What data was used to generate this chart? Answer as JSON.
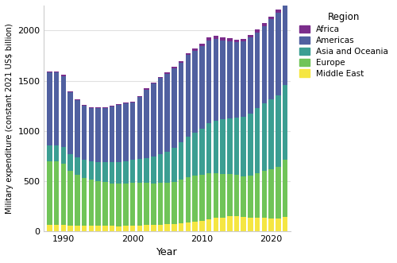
{
  "years": [
    1988,
    1989,
    1990,
    1991,
    1992,
    1993,
    1994,
    1995,
    1996,
    1997,
    1998,
    1999,
    2000,
    2001,
    2002,
    2003,
    2004,
    2005,
    2006,
    2007,
    2008,
    2009,
    2010,
    2011,
    2012,
    2013,
    2014,
    2015,
    2016,
    2017,
    2018,
    2019,
    2020,
    2021,
    2022
  ],
  "africa": [
    9,
    9,
    9,
    8,
    8,
    8,
    8,
    8,
    8,
    9,
    9,
    9,
    10,
    11,
    11,
    12,
    13,
    14,
    15,
    17,
    20,
    22,
    24,
    26,
    27,
    28,
    29,
    28,
    27,
    28,
    29,
    30,
    29,
    30,
    31
  ],
  "americas": [
    730,
    728,
    710,
    615,
    570,
    545,
    535,
    540,
    545,
    555,
    568,
    580,
    575,
    615,
    683,
    730,
    762,
    780,
    790,
    792,
    813,
    815,
    822,
    830,
    818,
    790,
    768,
    752,
    752,
    758,
    759,
    769,
    800,
    820,
    838
  ],
  "asia_oceania": [
    155,
    160,
    162,
    167,
    172,
    177,
    182,
    191,
    200,
    210,
    215,
    220,
    230,
    240,
    252,
    267,
    286,
    310,
    338,
    372,
    404,
    427,
    461,
    499,
    527,
    546,
    562,
    573,
    592,
    620,
    649,
    676,
    697,
    716,
    745
  ],
  "europe": [
    635,
    635,
    618,
    548,
    513,
    482,
    463,
    448,
    435,
    427,
    427,
    425,
    425,
    425,
    420,
    415,
    415,
    415,
    422,
    435,
    455,
    465,
    463,
    455,
    445,
    432,
    420,
    410,
    408,
    418,
    442,
    468,
    490,
    515,
    573
  ],
  "middle_east": [
    60,
    58,
    57,
    53,
    50,
    50,
    50,
    50,
    50,
    49,
    47,
    50,
    52,
    55,
    57,
    58,
    62,
    66,
    70,
    76,
    83,
    90,
    99,
    120,
    130,
    135,
    145,
    148,
    138,
    133,
    133,
    130,
    125,
    125,
    138
  ],
  "colors": {
    "africa": "#7B2D8B",
    "americas": "#5060A0",
    "asia_oceania": "#3B9E92",
    "europe": "#70C458",
    "middle_east": "#F5E642"
  },
  "xlabel": "Year",
  "ylabel": "Military expenditure (constant 2021 US$ billion)",
  "ylim": [
    0,
    2250
  ],
  "yticks": [
    0,
    500,
    1000,
    1500,
    2000
  ],
  "background_color": "#ffffff",
  "grid_color": "#e0e0e0",
  "legend_title": "Region"
}
